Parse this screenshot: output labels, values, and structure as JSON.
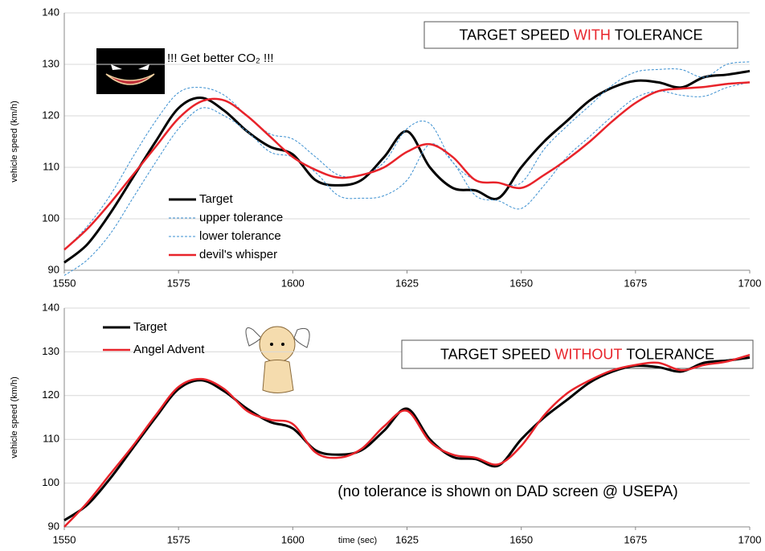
{
  "chart_data": [
    {
      "type": "line",
      "title_parts": [
        "TARGET SPEED",
        "WITH",
        "TOLERANCE"
      ],
      "annotation": "!!! Get better CO₂ !!!",
      "y_label": "vehicle speed (km/h)",
      "x": [
        1550,
        1555,
        1560,
        1565,
        1570,
        1575,
        1580,
        1585,
        1590,
        1595,
        1600,
        1605,
        1610,
        1615,
        1620,
        1625,
        1630,
        1635,
        1640,
        1645,
        1650,
        1655,
        1660,
        1665,
        1670,
        1675,
        1680,
        1685,
        1690,
        1695,
        1700
      ],
      "xlim": [
        1550,
        1700
      ],
      "xticks": [
        1550,
        1575,
        1600,
        1625,
        1650,
        1675,
        1700
      ],
      "ylim": [
        90,
        140
      ],
      "yticks": [
        90,
        100,
        110,
        120,
        130,
        140
      ],
      "grid": true,
      "legend": "lower left",
      "series": [
        {
          "name": "Target",
          "color": "#000000",
          "dashed": false,
          "values": [
            91.5,
            95,
            101,
            108,
            115,
            121.5,
            123.5,
            121,
            117,
            114,
            112.5,
            107.5,
            106.5,
            107.5,
            112,
            117,
            110,
            106,
            105.5,
            104,
            110,
            115,
            119,
            123,
            125.5,
            126.8,
            126.5,
            125.5,
            127.5,
            128,
            128.7
          ]
        },
        {
          "name": "upper tolerance",
          "color": "#3a8fd0",
          "dashed": true,
          "values": [
            94,
            98.5,
            104.5,
            112,
            119,
            124.5,
            125.5,
            124,
            120,
            116.5,
            115.5,
            112,
            108.5,
            108.5,
            111,
            117.5,
            118.5,
            111,
            107.5,
            107,
            107,
            113.5,
            118,
            122,
            126,
            128.5,
            129,
            129,
            127.5,
            130,
            130.5
          ]
        },
        {
          "name": "lower tolerance",
          "color": "#3a8fd0",
          "dashed": true,
          "values": [
            89,
            92,
            97,
            104,
            111,
            117.5,
            121.5,
            120,
            117,
            113,
            112,
            109,
            104.5,
            104,
            104.5,
            107.5,
            114.5,
            111,
            104.5,
            103.5,
            102,
            106.5,
            112,
            116,
            120,
            123.5,
            124.8,
            124,
            123.8,
            125.5,
            126.5
          ]
        },
        {
          "name": "devil's whisper",
          "color": "#e8232a",
          "dashed": false,
          "values": [
            94,
            98,
            103,
            108.5,
            114,
            119.5,
            122.8,
            123,
            120,
            116,
            112,
            109.5,
            108,
            108.5,
            110,
            113,
            114.5,
            112,
            107.5,
            107,
            106,
            108.5,
            111.5,
            115,
            119,
            122.5,
            124.8,
            125.3,
            125.6,
            126.2,
            126.5
          ]
        }
      ]
    },
    {
      "type": "line",
      "title_parts": [
        "TARGET SPEED",
        "WITHOUT",
        "TOLERANCE"
      ],
      "annotation": "(no tolerance is shown on DAD screen @ USEPA)",
      "y_label": "vehicle speed (km/h)",
      "x_label": "time (sec)",
      "x": [
        1550,
        1555,
        1560,
        1565,
        1570,
        1575,
        1580,
        1585,
        1590,
        1595,
        1600,
        1605,
        1610,
        1615,
        1620,
        1625,
        1630,
        1635,
        1640,
        1645,
        1650,
        1655,
        1660,
        1665,
        1670,
        1675,
        1680,
        1685,
        1690,
        1695,
        1700
      ],
      "xlim": [
        1550,
        1700
      ],
      "xticks": [
        1550,
        1575,
        1600,
        1625,
        1650,
        1675,
        1700
      ],
      "ylim": [
        90,
        140
      ],
      "yticks": [
        90,
        100,
        110,
        120,
        130,
        140
      ],
      "grid": true,
      "legend": "upper left",
      "series": [
        {
          "name": "Target",
          "color": "#000000",
          "dashed": false,
          "values": [
            91.5,
            95,
            101,
            108,
            115,
            121.5,
            123.5,
            121,
            117,
            114,
            112.5,
            107.5,
            106.5,
            107.5,
            112,
            117,
            110,
            106,
            105.5,
            104,
            110,
            115,
            119,
            123,
            125.5,
            126.8,
            126.5,
            125.5,
            127.5,
            128,
            128.7
          ]
        },
        {
          "name": "Angel Advent",
          "color": "#e8232a",
          "dashed": false,
          "values": [
            90,
            95.5,
            102,
            108.5,
            115.5,
            122,
            123.8,
            121.5,
            116.5,
            114.5,
            113.5,
            107,
            105.8,
            107.8,
            113,
            116.5,
            109.5,
            106.5,
            105.8,
            104.3,
            108.5,
            115.5,
            120.5,
            123.5,
            125.8,
            127,
            127.5,
            125.8,
            127,
            127.8,
            129.3
          ]
        }
      ]
    }
  ]
}
